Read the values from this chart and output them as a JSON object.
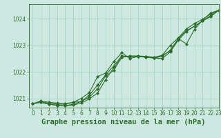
{
  "title": "Graphe pression niveau de la mer (hPa)",
  "background_color": "#cde8e0",
  "plot_bg_color": "#cde8e0",
  "grid_color": "#9ecfbe",
  "line_color": "#2d6e2d",
  "xlim": [
    -0.5,
    23
  ],
  "ylim": [
    1020.65,
    1024.55
  ],
  "yticks": [
    1021,
    1022,
    1023,
    1024
  ],
  "xticks": [
    0,
    1,
    2,
    3,
    4,
    5,
    6,
    7,
    8,
    9,
    10,
    11,
    12,
    13,
    14,
    15,
    16,
    17,
    18,
    19,
    20,
    21,
    22,
    23
  ],
  "series": [
    [
      1020.8,
      1020.9,
      1020.85,
      1020.82,
      1020.8,
      1020.85,
      1020.88,
      1021.05,
      1021.35,
      1021.85,
      1022.05,
      1022.55,
      1022.6,
      1022.6,
      1022.58,
      1022.55,
      1022.62,
      1022.78,
      1023.25,
      1023.05,
      1023.6,
      1023.95,
      1024.22,
      1024.32
    ],
    [
      1020.8,
      1020.85,
      1020.78,
      1020.74,
      1020.72,
      1020.75,
      1020.82,
      1020.98,
      1021.2,
      1021.7,
      1022.15,
      1022.55,
      1022.58,
      1022.58,
      1022.55,
      1022.52,
      1022.5,
      1022.75,
      1023.2,
      1023.52,
      1023.72,
      1023.92,
      1024.12,
      1024.32
    ],
    [
      1020.8,
      1020.88,
      1020.82,
      1020.78,
      1020.78,
      1020.85,
      1021.0,
      1021.22,
      1021.82,
      1021.95,
      1022.38,
      1022.72,
      1022.5,
      1022.58,
      1022.58,
      1022.52,
      1022.62,
      1023.0,
      1023.28,
      1023.62,
      1023.82,
      1023.98,
      1024.18,
      1024.32
    ],
    [
      1020.8,
      1020.85,
      1020.78,
      1020.74,
      1020.72,
      1020.78,
      1020.88,
      1021.12,
      1021.5,
      1021.88,
      1022.22,
      1022.6,
      1022.58,
      1022.58,
      1022.55,
      1022.52,
      1022.58,
      1022.82,
      1023.25,
      1023.55,
      1023.72,
      1023.92,
      1024.08,
      1024.32
    ]
  ],
  "marker": "D",
  "markersize": 2.0,
  "linewidth": 0.8,
  "title_fontsize": 7.5,
  "tick_fontsize": 5.5,
  "tick_color": "#2d6e2d"
}
